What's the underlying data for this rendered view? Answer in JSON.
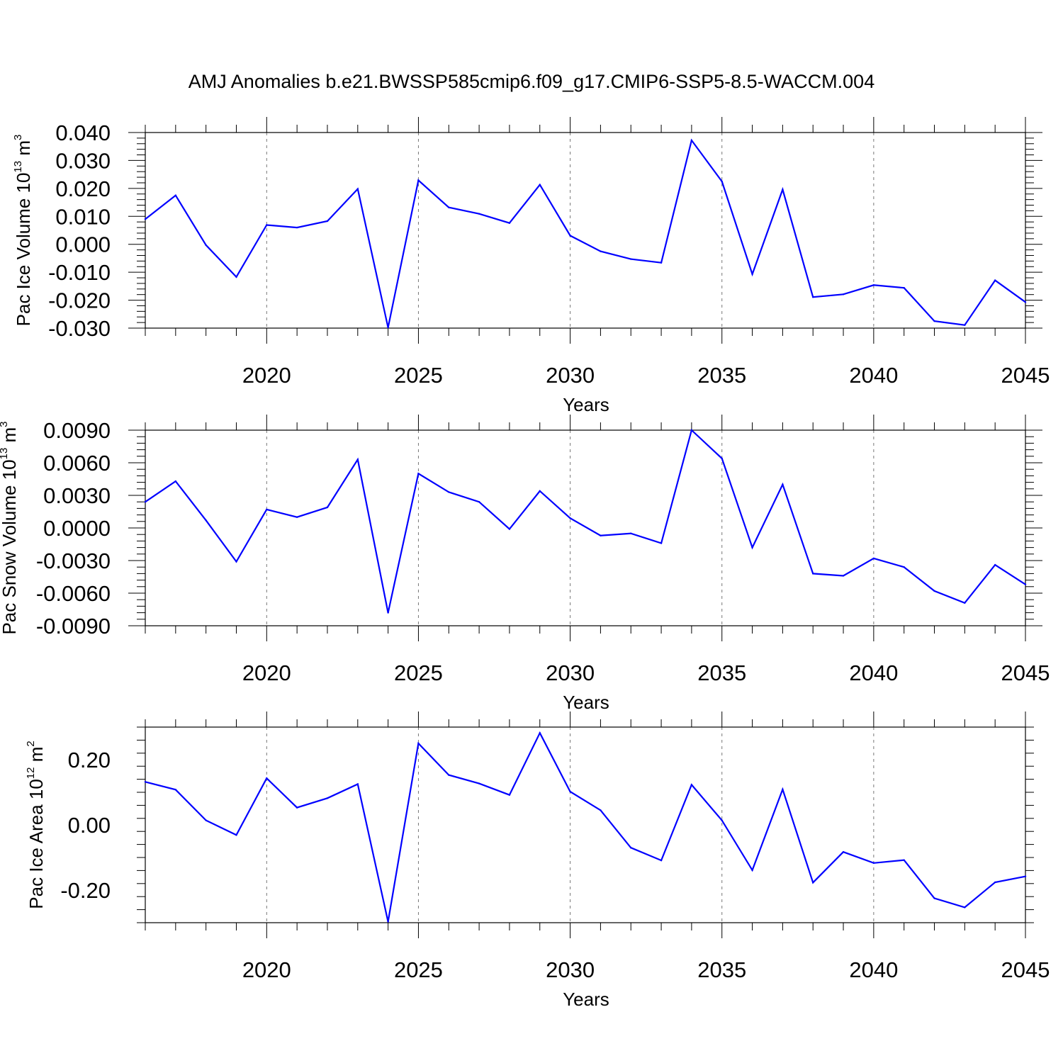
{
  "title": "AMJ Anomalies b.e21.BWSSP585cmip6.f09_g17.CMIP6-SSP5-8.5-WACCM.004",
  "colors": {
    "line": "#0000ff",
    "axis": "#000000"
  },
  "chart_data": [
    {
      "type": "line",
      "ylabel": {
        "text": "Pac Ice Volume 10",
        "exponent": "13",
        "unit": " m",
        "unit_exponent": "3"
      },
      "xlabel": "Years",
      "xlim": [
        2016,
        2045
      ],
      "ylim": [
        -0.03,
        0.04
      ],
      "xticks": [
        "2020",
        "2025",
        "2030",
        "2035",
        "2040",
        "2045"
      ],
      "yticks": [
        "0.040",
        "0.030",
        "0.020",
        "0.010",
        "0.000",
        "-0.010",
        "-0.020",
        "-0.030"
      ],
      "ytick_values": [
        0.04,
        0.03,
        0.02,
        0.01,
        0.0,
        -0.01,
        -0.02,
        -0.03
      ],
      "grid": "x-dashed",
      "x": [
        2016,
        2017,
        2018,
        2019,
        2020,
        2021,
        2022,
        2023,
        2024,
        2025,
        2026,
        2027,
        2028,
        2029,
        2030,
        2031,
        2032,
        2033,
        2034,
        2035,
        2036,
        2037,
        2038,
        2039,
        2040,
        2041,
        2042,
        2043,
        2044,
        2045
      ],
      "values": [
        0.009,
        0.0175,
        -0.0003,
        -0.0117,
        0.0069,
        0.006,
        0.0083,
        0.0198,
        -0.0298,
        0.0229,
        0.0132,
        0.0109,
        0.0076,
        0.0213,
        0.0031,
        -0.0025,
        -0.0053,
        -0.0066,
        0.0372,
        0.0225,
        -0.0107,
        0.0196,
        -0.0189,
        -0.0179,
        -0.0146,
        -0.0156,
        -0.0275,
        -0.0289,
        -0.0129,
        -0.0207
      ]
    },
    {
      "type": "line",
      "ylabel": {
        "text": "Pac Snow Volume 10",
        "exponent": "13",
        "unit": " m",
        "unit_exponent": "3"
      },
      "xlabel": "Years",
      "xlim": [
        2016,
        2045
      ],
      "ylim": [
        -0.009,
        0.009
      ],
      "xticks": [
        "2020",
        "2025",
        "2030",
        "2035",
        "2040",
        "2045"
      ],
      "yticks": [
        "0.0090",
        "0.0060",
        "0.0030",
        "0.0000",
        "-0.0030",
        "-0.0060",
        "-0.0090"
      ],
      "ytick_values": [
        0.009,
        0.006,
        0.003,
        0.0,
        -0.003,
        -0.006,
        -0.009
      ],
      "grid": "x-dashed",
      "x": [
        2016,
        2017,
        2018,
        2019,
        2020,
        2021,
        2022,
        2023,
        2024,
        2025,
        2026,
        2027,
        2028,
        2029,
        2030,
        2031,
        2032,
        2033,
        2034,
        2035,
        2036,
        2037,
        2038,
        2039,
        2040,
        2041,
        2042,
        2043,
        2044,
        2045
      ],
      "values": [
        0.0024,
        0.0043,
        0.0007,
        -0.0031,
        0.0017,
        0.001,
        0.0019,
        0.0063,
        -0.0078,
        0.005,
        0.0033,
        0.0024,
        -0.0001,
        0.0034,
        0.0009,
        -0.0007,
        -0.0005,
        -0.0014,
        0.009,
        0.0064,
        -0.0018,
        0.004,
        -0.0042,
        -0.0044,
        -0.0028,
        -0.0036,
        -0.0058,
        -0.0069,
        -0.0034,
        -0.0052
      ]
    },
    {
      "type": "line",
      "ylabel": {
        "text": "Pac Ice Area 10",
        "exponent": "12",
        "unit": " m",
        "unit_exponent": "2"
      },
      "xlabel": "Years",
      "xlim": [
        2016,
        2045
      ],
      "ylim": [
        -0.3,
        0.3
      ],
      "xticks": [
        "2020",
        "2025",
        "2030",
        "2035",
        "2040",
        "2045"
      ],
      "yticks": [
        "0.20",
        "0.00",
        "-0.20"
      ],
      "ytick_values": [
        0.2,
        0.0,
        -0.2
      ],
      "grid": "x-dashed",
      "x": [
        2016,
        2017,
        2018,
        2019,
        2020,
        2021,
        2022,
        2023,
        2024,
        2025,
        2026,
        2027,
        2028,
        2029,
        2030,
        2031,
        2032,
        2033,
        2034,
        2035,
        2036,
        2037,
        2038,
        2039,
        2040,
        2041,
        2042,
        2043,
        2044,
        2045
      ],
      "values": [
        0.132,
        0.108,
        0.014,
        -0.031,
        0.143,
        0.053,
        0.082,
        0.125,
        -0.297,
        0.25,
        0.153,
        0.127,
        0.092,
        0.282,
        0.102,
        0.045,
        -0.07,
        -0.109,
        0.123,
        0.014,
        -0.139,
        0.109,
        -0.177,
        -0.083,
        -0.117,
        -0.108,
        -0.225,
        -0.253,
        -0.176,
        -0.158
      ]
    }
  ]
}
